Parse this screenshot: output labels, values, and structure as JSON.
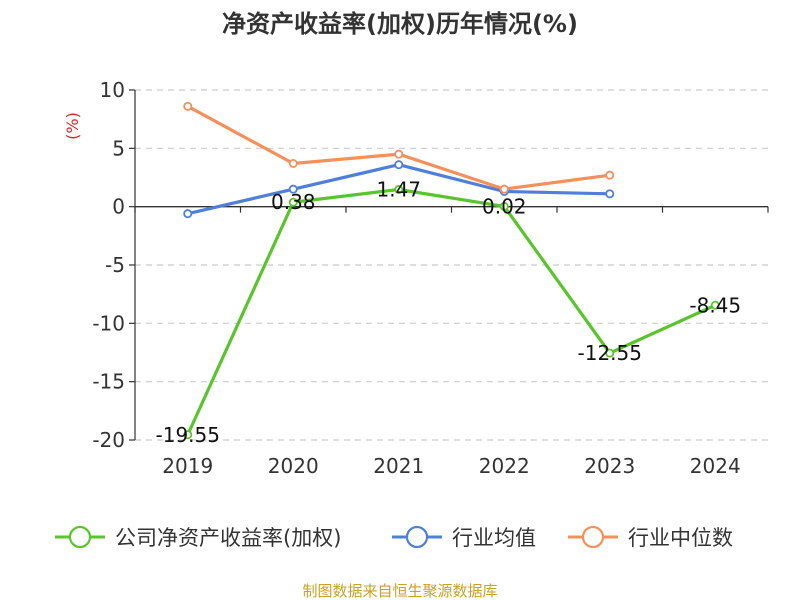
{
  "chart_data": {
    "type": "line",
    "title": "净资产收益率(加权)历年情况(%)",
    "ylabel": "(%)",
    "xlabel": "",
    "ylim": [
      -20,
      10
    ],
    "yticks": [
      10,
      5,
      0,
      -5,
      -10,
      -15,
      -20
    ],
    "categories": [
      "2019",
      "2020",
      "2021",
      "2022",
      "2023",
      "2024"
    ],
    "series": [
      {
        "name": "公司净资产收益率(加权)",
        "color": "#5ac42d",
        "values": [
          -19.55,
          0.38,
          1.47,
          0.02,
          -12.55,
          -8.45
        ],
        "labels": [
          "-19.55",
          "0.38",
          "1.47",
          "0.02",
          "-12.55",
          "-8.45"
        ]
      },
      {
        "name": "行业均值",
        "color": "#4e7fd9",
        "values": [
          -0.6,
          1.5,
          3.6,
          1.3,
          1.1,
          null
        ]
      },
      {
        "name": "行业中位数",
        "color": "#f5905a",
        "values": [
          8.6,
          3.7,
          4.5,
          1.5,
          2.7,
          null
        ]
      }
    ],
    "grid": true,
    "legend": "bottom"
  },
  "source": "制图数据来自恒生聚源数据库"
}
